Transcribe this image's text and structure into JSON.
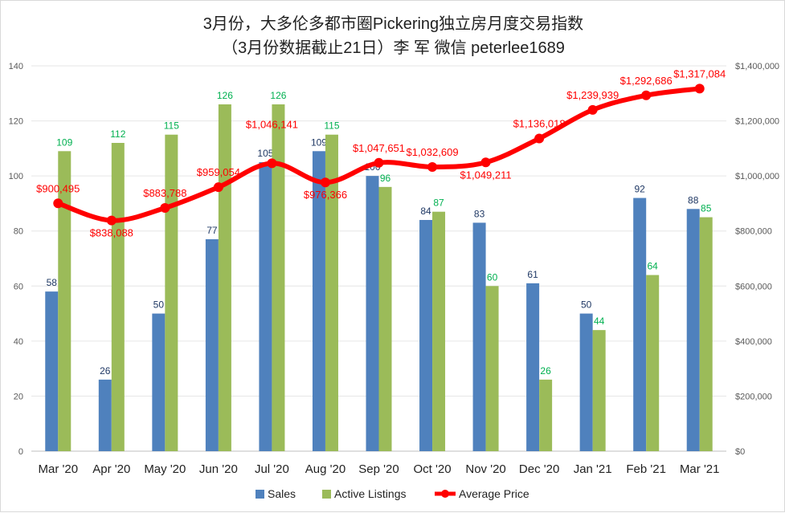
{
  "chart_data": {
    "type": "bar+line",
    "title": "3月份，大多伦多都市圈Pickering独立房月度交易指数",
    "subtitle": "（3月份数据截止21日）李 军  微信  peterlee1689",
    "categories": [
      "Mar '20",
      "Apr '20",
      "May '20",
      "Jun '20",
      "Jul '20",
      "Aug '20",
      "Sep '20",
      "Oct '20",
      "Nov '20",
      "Dec '20",
      "Jan '21",
      "Feb '21",
      "Mar '21"
    ],
    "series": [
      {
        "name": "Sales",
        "type": "bar",
        "axis": "left",
        "color": "#4f81bd",
        "label_color": "#1f3864",
        "values": [
          58,
          26,
          50,
          77,
          105,
          109,
          100,
          84,
          83,
          61,
          50,
          92,
          88
        ]
      },
      {
        "name": "Active Listings",
        "type": "bar",
        "axis": "left",
        "color": "#9bbb59",
        "label_color": "#00b050",
        "values": [
          109,
          112,
          115,
          126,
          126,
          115,
          96,
          87,
          60,
          26,
          44,
          64,
          85
        ]
      },
      {
        "name": "Average Price",
        "type": "line",
        "axis": "right",
        "color": "#ff0000",
        "label_color": "#ff0000",
        "values": [
          900495,
          838088,
          883788,
          959054,
          1046141,
          976366,
          1047651,
          1032609,
          1049211,
          1136018,
          1239939,
          1292686,
          1317084
        ],
        "labels": [
          "$900,495",
          "$838,088",
          "$883,788",
          "$959,054",
          "$1,046,141",
          "$976,366",
          "$1,047,651",
          "$1,032,609",
          "$1,049,211",
          "$1,136,018",
          "$1,239,939",
          "$1,292,686",
          "$1,317,084"
        ]
      }
    ],
    "left_axis": {
      "range": [
        0,
        140
      ],
      "ticks": [
        "0",
        "20",
        "40",
        "60",
        "80",
        "100",
        "120",
        "140"
      ]
    },
    "right_axis": {
      "range": [
        0,
        1400000
      ],
      "ticks": [
        "$0",
        "$200,000",
        "$400,000",
        "$600,000",
        "$800,000",
        "$1,000,000",
        "$1,200,000",
        "$1,400,000"
      ]
    },
    "grid": true,
    "legend_position": "bottom"
  }
}
